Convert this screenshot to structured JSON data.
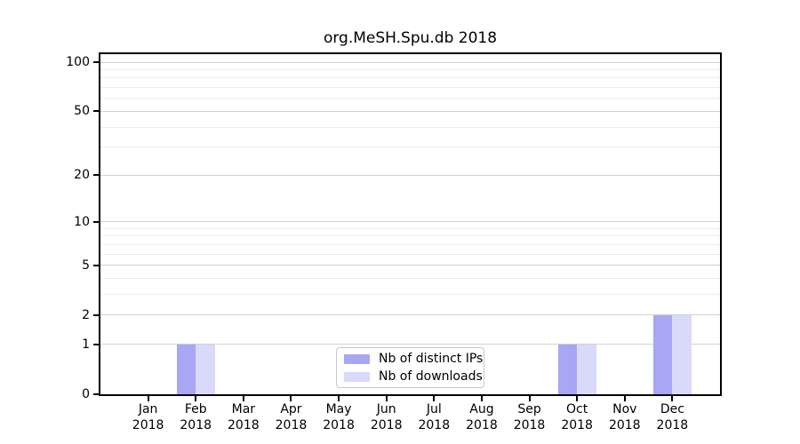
{
  "chart_data": {
    "type": "bar",
    "title": "org.MeSH.Spu.db 2018",
    "x_categories": [
      {
        "month": "Jan",
        "year": "2018"
      },
      {
        "month": "Feb",
        "year": "2018"
      },
      {
        "month": "Mar",
        "year": "2018"
      },
      {
        "month": "Apr",
        "year": "2018"
      },
      {
        "month": "May",
        "year": "2018"
      },
      {
        "month": "Jun",
        "year": "2018"
      },
      {
        "month": "Jul",
        "year": "2018"
      },
      {
        "month": "Aug",
        "year": "2018"
      },
      {
        "month": "Sep",
        "year": "2018"
      },
      {
        "month": "Oct",
        "year": "2018"
      },
      {
        "month": "Nov",
        "year": "2018"
      },
      {
        "month": "Dec",
        "year": "2018"
      }
    ],
    "series": [
      {
        "name": "Nb of distinct IPs",
        "color": "#a7a7f3",
        "values": [
          0,
          1,
          0,
          0,
          0,
          0,
          0,
          0,
          0,
          1,
          0,
          2
        ]
      },
      {
        "name": "Nb of downloads",
        "color": "#d9d9f9",
        "values": [
          0,
          1,
          0,
          0,
          0,
          0,
          0,
          0,
          0,
          1,
          0,
          2
        ]
      }
    ],
    "y_axis": {
      "scale": "log1p",
      "range": [
        0,
        100
      ],
      "ticks": [
        0,
        1,
        2,
        5,
        10,
        20,
        50,
        100
      ],
      "minor_gridlines": [
        3,
        4,
        6,
        7,
        8,
        9,
        30,
        40,
        60,
        70,
        80,
        90
      ]
    },
    "legend": {
      "position": "lower center"
    },
    "grid": true
  },
  "colors": {
    "major_grid": "#d2d2d2",
    "minor_grid": "#ececec",
    "spine": "#000000",
    "text": "#000000"
  }
}
